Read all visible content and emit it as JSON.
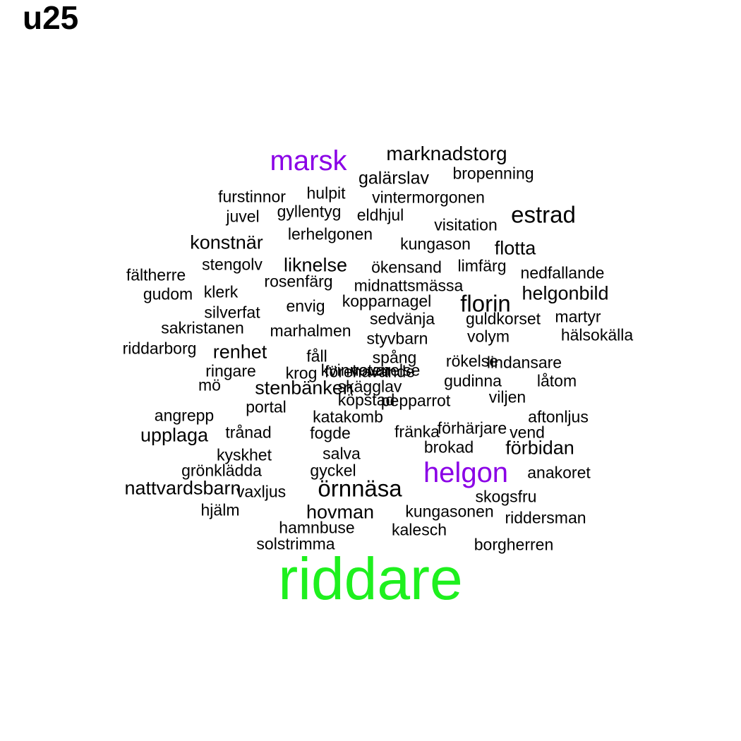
{
  "title": "u25",
  "colors": {
    "default": "#000000",
    "accent": "#8a00e6",
    "highlight": "#1ef01e"
  },
  "words": [
    {
      "text": "riddare",
      "color": "#1ef01e"
    },
    {
      "text": "marsk",
      "color": "#8a00e6"
    },
    {
      "text": "helgon",
      "color": "#8a00e6"
    },
    {
      "text": "marknadstorg"
    },
    {
      "text": "galärslav"
    },
    {
      "text": "bropenning"
    },
    {
      "text": "furstinnor"
    },
    {
      "text": "hulpit"
    },
    {
      "text": "vintermorgonen"
    },
    {
      "text": "juvel"
    },
    {
      "text": "gyllentyg"
    },
    {
      "text": "eldhjul"
    },
    {
      "text": "estrad"
    },
    {
      "text": "visitation"
    },
    {
      "text": "lerhelgonen"
    },
    {
      "text": "konstnär"
    },
    {
      "text": "kungason"
    },
    {
      "text": "flotta"
    },
    {
      "text": "stengolv"
    },
    {
      "text": "liknelse"
    },
    {
      "text": "ökensand"
    },
    {
      "text": "limfärg"
    },
    {
      "text": "fältherre"
    },
    {
      "text": "nedfallande"
    },
    {
      "text": "rosenfärg"
    },
    {
      "text": "midnattsmässa"
    },
    {
      "text": "gudom"
    },
    {
      "text": "klerk"
    },
    {
      "text": "helgonbild"
    },
    {
      "text": "kopparnagel"
    },
    {
      "text": "florin"
    },
    {
      "text": "envig"
    },
    {
      "text": "silverfat"
    },
    {
      "text": "sedvänja"
    },
    {
      "text": "guldkorset"
    },
    {
      "text": "martyr"
    },
    {
      "text": "sakristanen"
    },
    {
      "text": "marhalmen"
    },
    {
      "text": "styvbarn"
    },
    {
      "text": "volym"
    },
    {
      "text": "hälsokälla"
    },
    {
      "text": "riddarborg"
    },
    {
      "text": "renhet"
    },
    {
      "text": "fåll"
    },
    {
      "text": "spång"
    },
    {
      "text": "rökelse"
    },
    {
      "text": "lindansare"
    },
    {
      "text": "ringare"
    },
    {
      "text": "krog"
    },
    {
      "text": "förehavande"
    },
    {
      "text": "mö"
    },
    {
      "text": "stenbänken"
    },
    {
      "text": "skägglav"
    },
    {
      "text": "gudinna"
    },
    {
      "text": "låtom"
    },
    {
      "text": "köpstad"
    },
    {
      "text": "pepparrot"
    },
    {
      "text": "viljen"
    },
    {
      "text": "portal"
    },
    {
      "text": "angrepp"
    },
    {
      "text": "katakomb"
    },
    {
      "text": "aftonljus"
    },
    {
      "text": "upplaga"
    },
    {
      "text": "trånad"
    },
    {
      "text": "fogde"
    },
    {
      "text": "fränka"
    },
    {
      "text": "förhärjare"
    },
    {
      "text": "vend"
    },
    {
      "text": "kyskhet"
    },
    {
      "text": "salva"
    },
    {
      "text": "brokad"
    },
    {
      "text": "förbidan"
    },
    {
      "text": "grönklädda"
    },
    {
      "text": "gyckel"
    },
    {
      "text": "anakoret"
    },
    {
      "text": "nattvardsbarn"
    },
    {
      "text": "örnnäsa"
    },
    {
      "text": "vaxljus"
    },
    {
      "text": "skogsfru"
    },
    {
      "text": "hjälm"
    },
    {
      "text": "hovman"
    },
    {
      "text": "kungasonen"
    },
    {
      "text": "riddersman"
    },
    {
      "text": "hamnbuse"
    },
    {
      "text": "kalesch"
    },
    {
      "text": "solstrimma"
    },
    {
      "text": "borgherren"
    },
    {
      "text": "kvinnovarelse"
    },
    {
      "text": "veten"
    }
  ]
}
